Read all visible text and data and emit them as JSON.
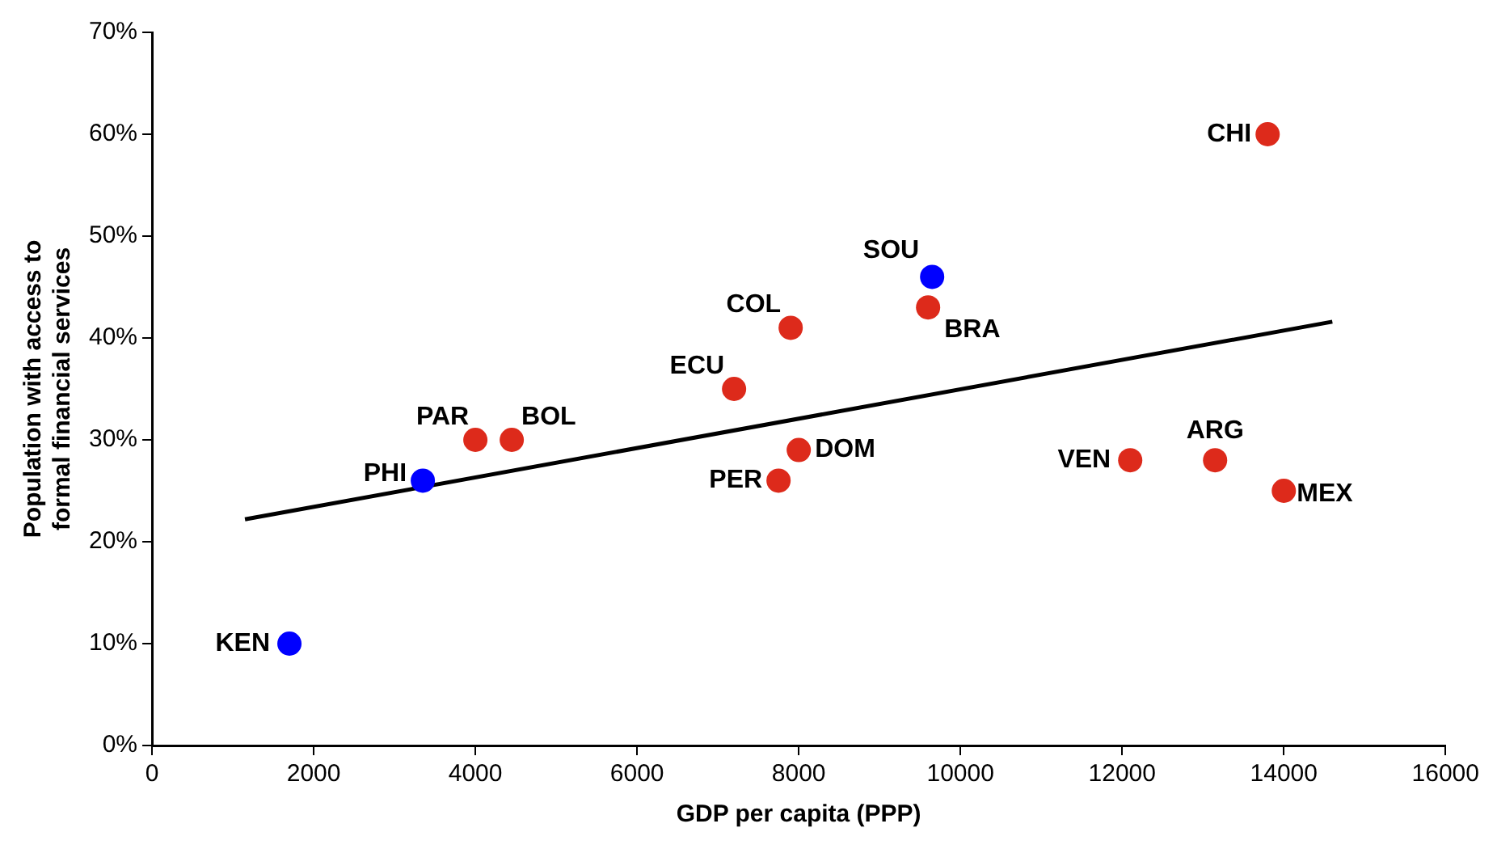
{
  "chart_data": {
    "type": "scatter",
    "xlabel": "GDP per capita (PPP)",
    "ylabel": "Population with access to formal financial services",
    "xlim": [
      0,
      16000
    ],
    "xticks": [
      0,
      2000,
      4000,
      6000,
      8000,
      10000,
      12000,
      14000,
      16000
    ],
    "ylim": [
      0,
      70
    ],
    "yticks": [
      {
        "value": 0,
        "label": "0%"
      },
      {
        "value": 10,
        "label": "10%"
      },
      {
        "value": 20,
        "label": "20%"
      },
      {
        "value": 30,
        "label": "30%"
      },
      {
        "value": 40,
        "label": "40%"
      },
      {
        "value": 50,
        "label": "50%"
      },
      {
        "value": 60,
        "label": "60%"
      },
      {
        "value": 70,
        "label": "70%"
      }
    ],
    "grid": false,
    "legend": false,
    "marker": "circle",
    "series": [
      {
        "color": "#dd2a1b",
        "x": [
          4000,
          4450,
          7200,
          7900,
          7750,
          8000,
          9600,
          12100,
          13150,
          14000,
          13800
        ],
        "values": [
          30,
          30,
          35,
          41,
          26,
          29,
          43,
          28,
          28,
          25,
          60
        ]
      },
      {
        "color": "#0000ff",
        "x": [
          1700,
          3350,
          9650
        ],
        "values": [
          10,
          26,
          46
        ]
      },
      {
        "type": "line",
        "color": "#000000",
        "x": [
          1150,
          14600
        ],
        "values": [
          22.2,
          41.6
        ],
        "marker": "none",
        "line_style": "solid"
      }
    ],
    "annotations": [
      {
        "text": "PAR",
        "x": 4000,
        "y": 30
      },
      {
        "text": "BOL",
        "x": 4450,
        "y": 30
      },
      {
        "text": "ECU",
        "x": 7200,
        "y": 35
      },
      {
        "text": "COL",
        "x": 7900,
        "y": 41
      },
      {
        "text": "PER",
        "x": 7750,
        "y": 26
      },
      {
        "text": "DOM",
        "x": 8000,
        "y": 29
      },
      {
        "text": "BRA",
        "x": 9600,
        "y": 43
      },
      {
        "text": "VEN",
        "x": 12100,
        "y": 28
      },
      {
        "text": "ARG",
        "x": 13150,
        "y": 28
      },
      {
        "text": "MEX",
        "x": 14000,
        "y": 25
      },
      {
        "text": "CHI",
        "x": 13800,
        "y": 60
      },
      {
        "text": "KEN",
        "x": 1700,
        "y": 10
      },
      {
        "text": "PHI",
        "x": 3350,
        "y": 26
      },
      {
        "text": "SOU",
        "x": 9650,
        "y": 46
      }
    ]
  }
}
